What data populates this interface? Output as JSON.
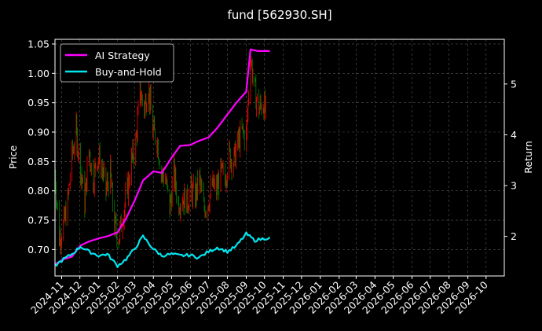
{
  "chart_data": {
    "type": "line",
    "title": "fund [562930.SH]",
    "ylabel": "Price",
    "y2label": "Return",
    "ylim": [
      0.655,
      1.058
    ],
    "y2lim": [
      1.22,
      5.88
    ],
    "yticks": [
      0.7,
      0.75,
      0.8,
      0.85,
      0.9,
      0.95,
      1.0,
      1.05
    ],
    "y2ticks": [
      2,
      3,
      4,
      5
    ],
    "xlim": [
      "2024-10-21",
      "2026-10-31"
    ],
    "xticks": [
      "2024-11",
      "2024-12",
      "2025-01",
      "2025-02",
      "2025-03",
      "2025-04",
      "2025-05",
      "2025-06",
      "2025-07",
      "2025-08",
      "2025-09",
      "2025-10",
      "2025-11",
      "2025-12",
      "2026-01",
      "2026-02",
      "2026-03",
      "2026-04",
      "2026-05",
      "2026-06",
      "2026-07",
      "2026-08",
      "2026-09",
      "2026-10"
    ],
    "grid": true,
    "legend": "top-left",
    "colors": {
      "up": "#ff0000",
      "down": "#008000",
      "ai": "#ff00ff",
      "bh": "#00e5ee",
      "background": "#000000",
      "grid": "#555555"
    },
    "candle_closes": [
      [
        "2024-10-21",
        0.83
      ],
      [
        "2024-10-28",
        0.72
      ],
      [
        "2024-11-04",
        0.74
      ],
      [
        "2024-11-11",
        0.78
      ],
      [
        "2024-11-18",
        0.86
      ],
      [
        "2024-11-25",
        0.9
      ],
      [
        "2024-12-02",
        0.84
      ],
      [
        "2024-12-09",
        0.78
      ],
      [
        "2024-12-16",
        0.87
      ],
      [
        "2024-12-23",
        0.82
      ],
      [
        "2024-12-30",
        0.86
      ],
      [
        "2025-01-06",
        0.84
      ],
      [
        "2025-01-13",
        0.8
      ],
      [
        "2025-01-20",
        0.83
      ],
      [
        "2025-01-27",
        0.74
      ],
      [
        "2025-02-03",
        0.72
      ],
      [
        "2025-02-10",
        0.76
      ],
      [
        "2025-02-17",
        0.8
      ],
      [
        "2025-02-24",
        0.85
      ],
      [
        "2025-03-03",
        0.88
      ],
      [
        "2025-03-10",
        0.97
      ],
      [
        "2025-03-17",
        0.94
      ],
      [
        "2025-03-24",
        0.98
      ],
      [
        "2025-03-31",
        0.9
      ],
      [
        "2025-04-07",
        0.89
      ],
      [
        "2025-04-14",
        0.83
      ],
      [
        "2025-04-21",
        0.82
      ],
      [
        "2025-04-28",
        0.77
      ],
      [
        "2025-05-05",
        0.83
      ],
      [
        "2025-05-12",
        0.78
      ],
      [
        "2025-05-19",
        0.79
      ],
      [
        "2025-05-26",
        0.78
      ],
      [
        "2025-06-02",
        0.8
      ],
      [
        "2025-06-09",
        0.79
      ],
      [
        "2025-06-16",
        0.82
      ],
      [
        "2025-06-23",
        0.77
      ],
      [
        "2025-06-30",
        0.78
      ],
      [
        "2025-07-07",
        0.81
      ],
      [
        "2025-07-14",
        0.8
      ],
      [
        "2025-07-21",
        0.83
      ],
      [
        "2025-07-28",
        0.82
      ],
      [
        "2025-08-04",
        0.86
      ],
      [
        "2025-08-11",
        0.85
      ],
      [
        "2025-08-18",
        0.88
      ],
      [
        "2025-08-25",
        0.9
      ],
      [
        "2025-09-01",
        0.89
      ],
      [
        "2025-09-08",
        1.03
      ],
      [
        "2025-09-15",
        0.97
      ],
      [
        "2025-09-22",
        0.94
      ],
      [
        "2025-09-29",
        0.95
      ],
      [
        "2025-10-06",
        0.92
      ]
    ],
    "series": [
      {
        "name": "AI Strategy",
        "points": [
          [
            "2024-10-21",
            1.45
          ],
          [
            "2024-11-04",
            1.55
          ],
          [
            "2024-11-18",
            1.6
          ],
          [
            "2024-12-02",
            1.82
          ],
          [
            "2024-12-16",
            1.9
          ],
          [
            "2025-01-01",
            1.96
          ],
          [
            "2025-01-15",
            2.0
          ],
          [
            "2025-02-01",
            2.08
          ],
          [
            "2025-02-15",
            2.35
          ],
          [
            "2025-03-01",
            2.7
          ],
          [
            "2025-03-15",
            3.1
          ],
          [
            "2025-04-01",
            3.28
          ],
          [
            "2025-04-15",
            3.25
          ],
          [
            "2025-05-01",
            3.55
          ],
          [
            "2025-05-15",
            3.78
          ],
          [
            "2025-06-01",
            3.8
          ],
          [
            "2025-06-15",
            3.88
          ],
          [
            "2025-07-01",
            3.95
          ],
          [
            "2025-07-15",
            4.13
          ],
          [
            "2025-08-01",
            4.4
          ],
          [
            "2025-08-15",
            4.62
          ],
          [
            "2025-09-01",
            4.85
          ],
          [
            "2025-09-08",
            5.68
          ],
          [
            "2025-09-20",
            5.65
          ],
          [
            "2025-10-10",
            5.65
          ]
        ]
      },
      {
        "name": "Buy-and-Hold",
        "points": [
          [
            "2024-10-21",
            1.42
          ],
          [
            "2024-11-04",
            1.55
          ],
          [
            "2024-11-18",
            1.65
          ],
          [
            "2024-12-02",
            1.8
          ],
          [
            "2024-12-16",
            1.7
          ],
          [
            "2025-01-01",
            1.62
          ],
          [
            "2025-01-15",
            1.65
          ],
          [
            "2025-02-01",
            1.42
          ],
          [
            "2025-02-15",
            1.55
          ],
          [
            "2025-03-01",
            1.75
          ],
          [
            "2025-03-15",
            2.0
          ],
          [
            "2025-04-01",
            1.75
          ],
          [
            "2025-04-15",
            1.62
          ],
          [
            "2025-05-01",
            1.65
          ],
          [
            "2025-05-15",
            1.62
          ],
          [
            "2025-06-01",
            1.63
          ],
          [
            "2025-06-15",
            1.58
          ],
          [
            "2025-07-01",
            1.7
          ],
          [
            "2025-07-15",
            1.78
          ],
          [
            "2025-08-01",
            1.7
          ],
          [
            "2025-08-15",
            1.8
          ],
          [
            "2025-09-01",
            2.05
          ],
          [
            "2025-09-15",
            1.92
          ],
          [
            "2025-10-10",
            1.98
          ]
        ]
      }
    ]
  }
}
